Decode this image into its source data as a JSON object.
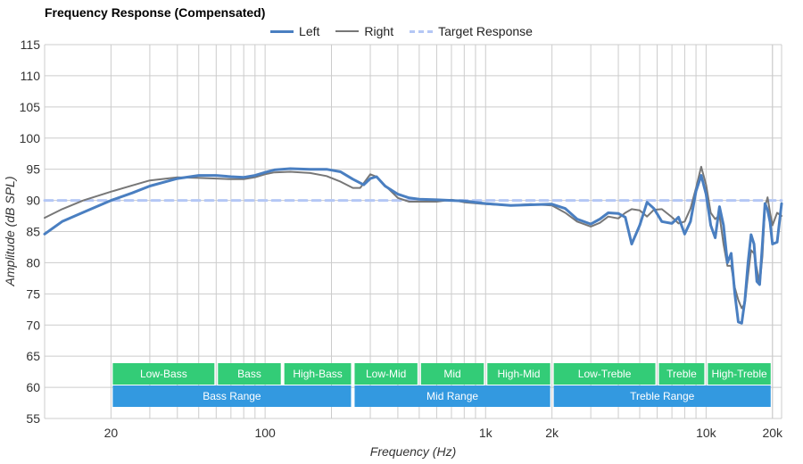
{
  "chart_data": {
    "type": "line",
    "title": "Frequency Response (Compensated)",
    "xlabel": "Frequency (Hz)",
    "ylabel": "Amplitude (dB SPL)",
    "xscale": "log",
    "xlim": [
      10,
      22000
    ],
    "ylim": [
      55,
      115
    ],
    "yticks": [
      55,
      60,
      65,
      70,
      75,
      80,
      85,
      90,
      95,
      100,
      105,
      110,
      115
    ],
    "xticks": [
      {
        "value": 20,
        "label": "20"
      },
      {
        "value": 100,
        "label": "100"
      },
      {
        "value": 1000,
        "label": "1k"
      },
      {
        "value": 2000,
        "label": "2k"
      },
      {
        "value": 10000,
        "label": "10k"
      },
      {
        "value": 20000,
        "label": "20k"
      }
    ],
    "grid": true,
    "legend_position": "top-center",
    "series": [
      {
        "name": "Left",
        "color": "#4a7fc1",
        "points": [
          [
            10,
            84.6
          ],
          [
            12,
            86.6
          ],
          [
            15,
            88.1
          ],
          [
            20,
            90.0
          ],
          [
            25,
            91.2
          ],
          [
            30,
            92.3
          ],
          [
            40,
            93.5
          ],
          [
            50,
            94.0
          ],
          [
            60,
            94.0
          ],
          [
            70,
            93.8
          ],
          [
            80,
            93.7
          ],
          [
            90,
            94.0
          ],
          [
            100,
            94.5
          ],
          [
            110,
            94.9
          ],
          [
            130,
            95.1
          ],
          [
            160,
            95.0
          ],
          [
            190,
            95.0
          ],
          [
            220,
            94.6
          ],
          [
            250,
            93.4
          ],
          [
            280,
            92.5
          ],
          [
            300,
            93.5
          ],
          [
            320,
            93.8
          ],
          [
            350,
            92.3
          ],
          [
            400,
            91.0
          ],
          [
            450,
            90.4
          ],
          [
            500,
            90.2
          ],
          [
            600,
            90.1
          ],
          [
            700,
            90.0
          ],
          [
            800,
            89.9
          ],
          [
            1000,
            89.5
          ],
          [
            1300,
            89.2
          ],
          [
            1600,
            89.3
          ],
          [
            2000,
            89.4
          ],
          [
            2300,
            88.7
          ],
          [
            2600,
            87.0
          ],
          [
            3000,
            86.2
          ],
          [
            3300,
            87.0
          ],
          [
            3600,
            88.0
          ],
          [
            4000,
            87.9
          ],
          [
            4300,
            87.3
          ],
          [
            4600,
            83.0
          ],
          [
            5000,
            86.0
          ],
          [
            5400,
            89.7
          ],
          [
            5800,
            88.7
          ],
          [
            6300,
            86.6
          ],
          [
            7000,
            86.3
          ],
          [
            7500,
            87.3
          ],
          [
            8000,
            84.6
          ],
          [
            8500,
            86.6
          ],
          [
            9000,
            91.5
          ],
          [
            9500,
            94.0
          ],
          [
            10000,
            91.0
          ],
          [
            10500,
            86.0
          ],
          [
            11000,
            84.0
          ],
          [
            11500,
            89.0
          ],
          [
            12000,
            86.0
          ],
          [
            12500,
            80.0
          ],
          [
            13000,
            81.5
          ],
          [
            13500,
            75.0
          ],
          [
            14000,
            70.5
          ],
          [
            14500,
            70.3
          ],
          [
            15000,
            74.0
          ],
          [
            15500,
            80.0
          ],
          [
            16000,
            84.5
          ],
          [
            16500,
            83.0
          ],
          [
            17000,
            77.0
          ],
          [
            17500,
            76.5
          ],
          [
            18000,
            83.0
          ],
          [
            18500,
            89.5
          ],
          [
            19000,
            88.5
          ],
          [
            19500,
            86.5
          ],
          [
            20000,
            83.0
          ],
          [
            21000,
            83.3
          ],
          [
            22000,
            89.5
          ]
        ]
      },
      {
        "name": "Right",
        "color": "#777777",
        "points": [
          [
            10,
            87.2
          ],
          [
            12,
            88.6
          ],
          [
            15,
            90.0
          ],
          [
            20,
            91.4
          ],
          [
            25,
            92.4
          ],
          [
            30,
            93.2
          ],
          [
            40,
            93.7
          ],
          [
            50,
            93.6
          ],
          [
            60,
            93.5
          ],
          [
            70,
            93.4
          ],
          [
            80,
            93.4
          ],
          [
            90,
            93.7
          ],
          [
            100,
            94.2
          ],
          [
            110,
            94.5
          ],
          [
            130,
            94.6
          ],
          [
            160,
            94.4
          ],
          [
            190,
            93.9
          ],
          [
            220,
            93.0
          ],
          [
            250,
            92.0
          ],
          [
            270,
            92.0
          ],
          [
            300,
            94.2
          ],
          [
            320,
            93.8
          ],
          [
            350,
            92.4
          ],
          [
            400,
            90.4
          ],
          [
            450,
            89.8
          ],
          [
            500,
            89.8
          ],
          [
            600,
            89.8
          ],
          [
            700,
            90.1
          ],
          [
            800,
            89.7
          ],
          [
            1000,
            89.4
          ],
          [
            1300,
            89.2
          ],
          [
            1600,
            89.4
          ],
          [
            2000,
            89.2
          ],
          [
            2300,
            88.0
          ],
          [
            2600,
            86.6
          ],
          [
            3000,
            85.8
          ],
          [
            3300,
            86.4
          ],
          [
            3600,
            87.4
          ],
          [
            4000,
            87.1
          ],
          [
            4300,
            88.0
          ],
          [
            4600,
            88.6
          ],
          [
            5000,
            88.4
          ],
          [
            5400,
            87.4
          ],
          [
            5800,
            88.5
          ],
          [
            6300,
            88.6
          ],
          [
            7000,
            87.3
          ],
          [
            7500,
            86.3
          ],
          [
            8000,
            86.6
          ],
          [
            8500,
            88.7
          ],
          [
            9000,
            92.0
          ],
          [
            9500,
            95.4
          ],
          [
            10000,
            92.5
          ],
          [
            10500,
            88.0
          ],
          [
            11000,
            87.0
          ],
          [
            11500,
            87.6
          ],
          [
            12000,
            83.0
          ],
          [
            12500,
            79.5
          ],
          [
            13000,
            79.5
          ],
          [
            13500,
            76.0
          ],
          [
            14000,
            74.0
          ],
          [
            14500,
            72.7
          ],
          [
            15000,
            73.5
          ],
          [
            15500,
            78.0
          ],
          [
            16000,
            82.0
          ],
          [
            16500,
            81.5
          ],
          [
            17000,
            79.0
          ],
          [
            17500,
            76.5
          ],
          [
            18000,
            81.0
          ],
          [
            18500,
            89.0
          ],
          [
            19000,
            90.5
          ],
          [
            19500,
            88.0
          ],
          [
            20000,
            86.0
          ],
          [
            21000,
            88.0
          ],
          [
            22000,
            87.5
          ]
        ]
      },
      {
        "name": "Target Response",
        "color": "#b4c7f5",
        "dashed": true,
        "points": [
          [
            10,
            90
          ],
          [
            22000,
            90
          ]
        ]
      }
    ],
    "range_bands": [
      {
        "row": 1,
        "label": "Low-Bass",
        "from": 20,
        "to": 60
      },
      {
        "row": 1,
        "label": "Bass",
        "from": 60,
        "to": 120
      },
      {
        "row": 1,
        "label": "High-Bass",
        "from": 120,
        "to": 250
      },
      {
        "row": 1,
        "label": "Low-Mid",
        "from": 250,
        "to": 500
      },
      {
        "row": 1,
        "label": "Mid",
        "from": 500,
        "to": 1000
      },
      {
        "row": 1,
        "label": "High-Mid",
        "from": 1000,
        "to": 2000
      },
      {
        "row": 1,
        "label": "Low-Treble",
        "from": 2000,
        "to": 6000
      },
      {
        "row": 1,
        "label": "Treble",
        "from": 6000,
        "to": 10000
      },
      {
        "row": 1,
        "label": "High-Treble",
        "from": 10000,
        "to": 20000
      },
      {
        "row": 2,
        "label": "Bass Range",
        "from": 20,
        "to": 250
      },
      {
        "row": 2,
        "label": "Mid Range",
        "from": 250,
        "to": 2000
      },
      {
        "row": 2,
        "label": "Treble Range",
        "from": 2000,
        "to": 20000
      }
    ],
    "band_colors": {
      "row1": "#33cc77",
      "row2": "#3399e0"
    }
  }
}
